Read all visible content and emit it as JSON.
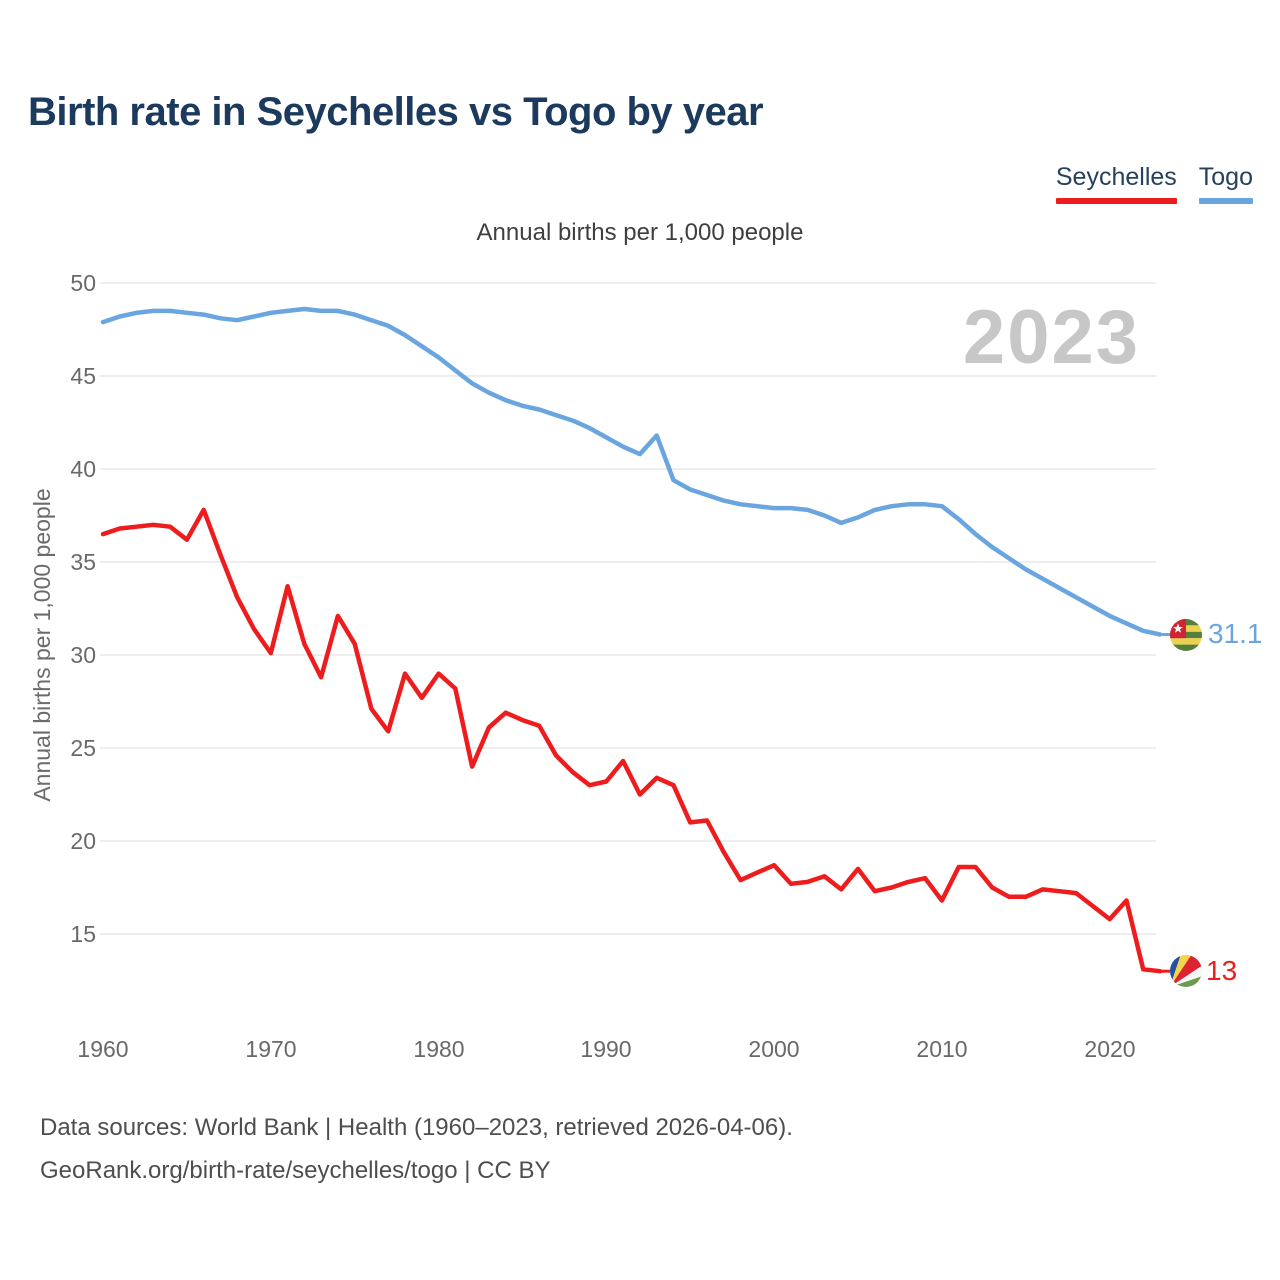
{
  "title": "Birth rate in Seychelles vs Togo by year",
  "subtitle": "Annual births per 1,000 people",
  "y_axis_title": "Annual births per 1,000 people",
  "watermark": "2023",
  "legend": [
    {
      "label": "Seychelles",
      "color": "#ee1c1c"
    },
    {
      "label": "Togo",
      "color": "#6aa5e0"
    }
  ],
  "chart_data": {
    "type": "line",
    "title": "Birth rate in Seychelles vs Togo by year",
    "subtitle": "Annual births per 1,000 people",
    "ylabel": "Annual births per 1,000 people",
    "xlabel": "",
    "grid": "horizontal",
    "legend_position": "top-right",
    "ylim": [
      12.5,
      50
    ],
    "xlim": [
      1960,
      2023
    ],
    "yticks": [
      50,
      45,
      40,
      35,
      30,
      25,
      20,
      15
    ],
    "xticks": [
      1960,
      1970,
      1980,
      1990,
      2000,
      2010,
      2020
    ],
    "years": [
      1960,
      1961,
      1962,
      1963,
      1964,
      1965,
      1966,
      1967,
      1968,
      1969,
      1970,
      1971,
      1972,
      1973,
      1974,
      1975,
      1976,
      1977,
      1978,
      1979,
      1980,
      1981,
      1982,
      1983,
      1984,
      1985,
      1986,
      1987,
      1988,
      1989,
      1990,
      1991,
      1992,
      1993,
      1994,
      1995,
      1996,
      1997,
      1998,
      1999,
      2000,
      2001,
      2002,
      2003,
      2004,
      2005,
      2006,
      2007,
      2008,
      2009,
      2010,
      2011,
      2012,
      2013,
      2014,
      2015,
      2016,
      2017,
      2018,
      2019,
      2020,
      2021,
      2022,
      2023
    ],
    "series": [
      {
        "name": "Seychelles",
        "color": "#ee1c1c",
        "end_label": "13",
        "flag_icon": "seychelles-flag-icon",
        "values": [
          36.5,
          36.8,
          36.9,
          37.0,
          36.9,
          36.2,
          37.8,
          35.4,
          33.1,
          31.4,
          30.1,
          33.7,
          30.6,
          28.8,
          32.1,
          30.6,
          27.1,
          25.9,
          29.0,
          27.7,
          29.0,
          28.2,
          24.0,
          26.1,
          26.9,
          26.5,
          26.2,
          24.6,
          23.7,
          23.0,
          23.2,
          24.3,
          22.5,
          23.4,
          23.0,
          21.0,
          21.1,
          19.4,
          17.9,
          18.3,
          18.7,
          17.7,
          17.8,
          18.1,
          17.4,
          18.5,
          17.3,
          17.5,
          17.8,
          18.0,
          16.8,
          18.6,
          18.6,
          17.5,
          17.0,
          17.0,
          17.4,
          17.3,
          17.2,
          16.5,
          15.8,
          16.8,
          13.1,
          13.0
        ]
      },
      {
        "name": "Togo",
        "color": "#6aa5e0",
        "end_label": "31.1",
        "flag_icon": "togo-flag-icon",
        "values": [
          47.9,
          48.2,
          48.4,
          48.5,
          48.5,
          48.4,
          48.3,
          48.1,
          48.0,
          48.2,
          48.4,
          48.5,
          48.6,
          48.5,
          48.5,
          48.3,
          48.0,
          47.7,
          47.2,
          46.6,
          46.0,
          45.3,
          44.6,
          44.1,
          43.7,
          43.4,
          43.2,
          42.9,
          42.6,
          42.2,
          41.7,
          41.2,
          40.8,
          41.8,
          39.4,
          38.9,
          38.6,
          38.3,
          38.1,
          38.0,
          37.9,
          37.9,
          37.8,
          37.5,
          37.1,
          37.4,
          37.8,
          38.0,
          38.1,
          38.1,
          38.0,
          37.3,
          36.5,
          35.8,
          35.2,
          34.6,
          34.1,
          33.6,
          33.1,
          32.6,
          32.1,
          31.7,
          31.3,
          31.1
        ]
      }
    ]
  },
  "footer": {
    "line1": "Data sources: World Bank | Health (1960–2023, retrieved 2026-04-06).",
    "line2": "GeoRank.org/birth-rate/seychelles/togo | CC BY"
  }
}
